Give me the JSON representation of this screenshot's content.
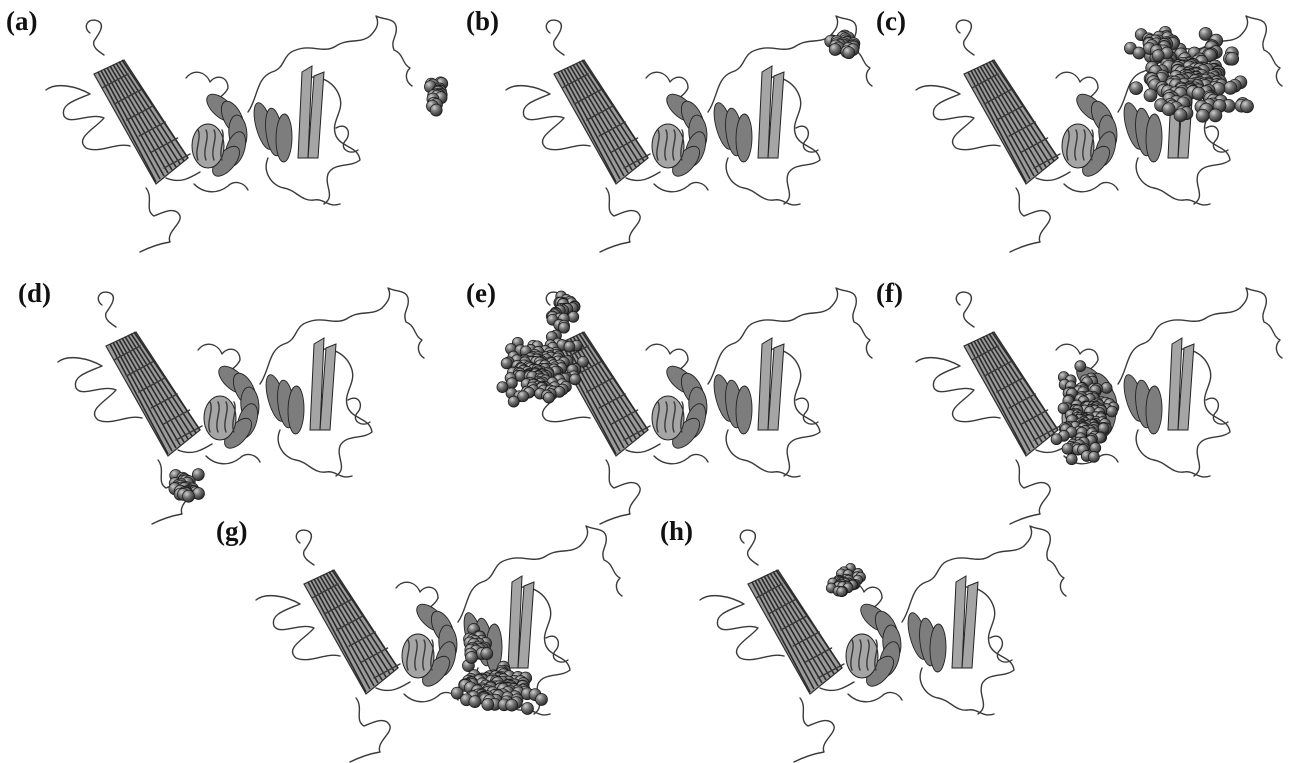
{
  "figure": {
    "panels": [
      {
        "id": "a",
        "label": "(a)",
        "ligand": "compact"
      },
      {
        "id": "b",
        "label": "(b)",
        "ligand": "compact"
      },
      {
        "id": "c",
        "label": "(c)",
        "ligand": "large"
      },
      {
        "id": "d",
        "label": "(d)",
        "ligand": "compact"
      },
      {
        "id": "e",
        "label": "(e)",
        "ligand": "large"
      },
      {
        "id": "f",
        "label": "(f)",
        "ligand": "large"
      },
      {
        "id": "g",
        "label": "(g)",
        "ligand": "extended"
      },
      {
        "id": "h",
        "label": "(h)",
        "ligand": "small"
      }
    ],
    "colors": {
      "background": "#ffffff",
      "ribbon": "#3a3a3a",
      "barrel_fill": "#9a9a9a",
      "helix_fill": "#7d7d7d",
      "sphere_fill": "#777777",
      "sphere_highlight": "#d0d0d0"
    }
  }
}
